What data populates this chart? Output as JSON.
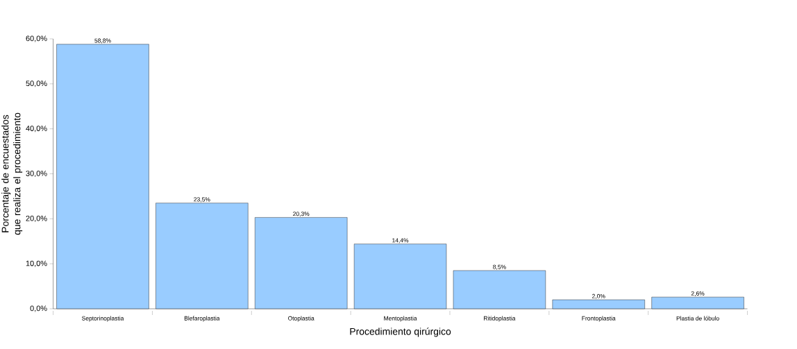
{
  "chart_data": {
    "type": "bar",
    "xlabel": "Procedimiento qirúrgico",
    "ylabel": "Porcentaje de encuestados que realiza el procedimiento",
    "categories": [
      "Septorinoplastia",
      "Blefaroplastia",
      "Otoplastia",
      "Mentoplastia",
      "Ritidoplastia",
      "Frontoplastia",
      "Plastia de lóbulo"
    ],
    "values": [
      58.8,
      23.5,
      20.3,
      14.4,
      8.5,
      2.0,
      2.6
    ],
    "value_labels": [
      "58,8%",
      "23,5%",
      "20,3%",
      "14,4%",
      "8,5%",
      "2,0%",
      "2,6%"
    ],
    "color": "#99ccff",
    "ylim": [
      0,
      60
    ],
    "yticks": [
      {
        "value": 0,
        "label": "0,0%"
      },
      {
        "value": 10,
        "label": "10,0%"
      },
      {
        "value": 20,
        "label": "20,0%"
      },
      {
        "value": 30,
        "label": "30,0%"
      },
      {
        "value": 40,
        "label": "40,0%"
      },
      {
        "value": 50,
        "label": "50,0%"
      },
      {
        "value": 60,
        "label": "60,0%"
      }
    ]
  }
}
